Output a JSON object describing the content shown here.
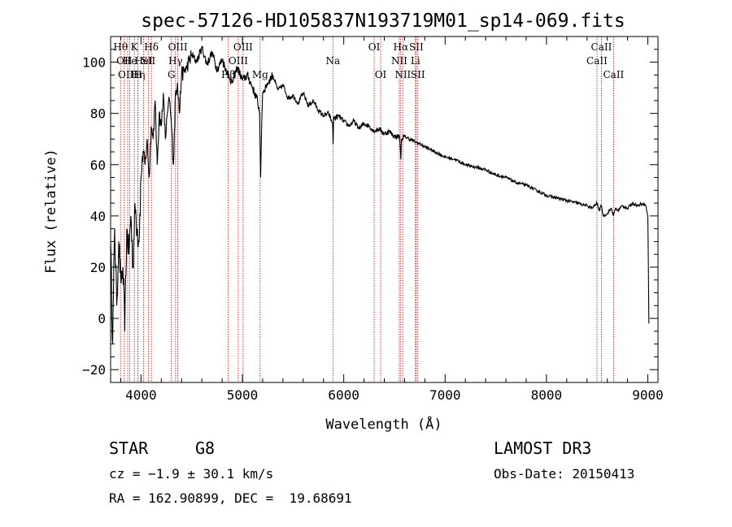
{
  "chart_data": {
    "type": "line",
    "title": "spec-57126-HD105837N193719M01_sp14-069.fits",
    "xlabel": "Wavelength (Å)",
    "ylabel": "Flux (relative)",
    "xlim": [
      3700,
      9100
    ],
    "ylim": [
      -25,
      110
    ],
    "xticks": [
      4000,
      5000,
      6000,
      7000,
      8000,
      9000
    ],
    "yticks": [
      -20,
      0,
      20,
      40,
      60,
      80,
      100
    ],
    "grid": false,
    "series": [
      {
        "x": [
          3700,
          3720,
          3740,
          3760,
          3780,
          3800,
          3820,
          3840,
          3860,
          3880,
          3900,
          3920,
          3940,
          3960,
          3980,
          4000,
          4020,
          4040,
          4060,
          4080,
          4100,
          4120,
          4140,
          4160,
          4180,
          4200,
          4220,
          4240,
          4260,
          4280,
          4300,
          4320,
          4340,
          4360,
          4380,
          4400,
          4450,
          4500,
          4550,
          4600,
          4650,
          4700,
          4750,
          4800,
          4850,
          4900,
          4950,
          5000,
          5050,
          5100,
          5150,
          5170,
          5180,
          5190,
          5200,
          5250,
          5300,
          5350,
          5400,
          5450,
          5500,
          5550,
          5600,
          5650,
          5700,
          5750,
          5800,
          5850,
          5890,
          5895,
          5900,
          5950,
          6000,
          6050,
          6100,
          6150,
          6200,
          6250,
          6300,
          6350,
          6400,
          6450,
          6500,
          6550,
          6563,
          6570,
          6600,
          6650,
          6700,
          6750,
          6800,
          6850,
          6900,
          6950,
          7000,
          7100,
          7200,
          7300,
          7400,
          7500,
          7600,
          7700,
          7800,
          7900,
          8000,
          8100,
          8200,
          8300,
          8400,
          8450,
          8498,
          8520,
          8542,
          8560,
          8600,
          8640,
          8662,
          8680,
          8700,
          8750,
          8800,
          8850,
          8900,
          8950,
          8980,
          9000,
          9010
        ],
        "y": [
          30,
          -10,
          35,
          5,
          30,
          15,
          20,
          -5,
          35,
          25,
          40,
          20,
          45,
          35,
          30,
          55,
          65,
          60,
          70,
          55,
          75,
          70,
          85,
          60,
          80,
          75,
          88,
          70,
          80,
          85,
          75,
          60,
          88,
          92,
          80,
          95,
          98,
          103,
          100,
          106,
          99,
          104,
          97,
          101,
          96,
          92,
          98,
          93,
          95,
          90,
          85,
          80,
          55,
          75,
          88,
          92,
          95,
          89,
          91,
          86,
          87,
          84,
          88,
          83,
          85,
          81,
          79,
          80,
          76,
          68,
          78,
          79,
          77,
          75,
          77,
          74,
          76,
          75,
          73,
          74,
          72,
          73,
          71,
          71,
          62,
          70,
          71,
          70,
          69,
          68,
          67,
          66,
          65,
          64,
          63,
          62,
          60,
          59,
          58,
          56,
          55,
          53,
          52,
          50,
          48,
          47,
          46,
          45,
          44,
          43,
          45,
          42,
          44,
          40,
          41,
          43,
          40,
          43,
          42,
          44,
          43,
          45,
          44,
          45,
          44,
          40,
          -2
        ]
      }
    ],
    "lines": [
      {
        "wl": 3798,
        "label": "Hθ",
        "row": 1
      },
      {
        "wl": 3835,
        "label": "OII",
        "row": 2
      },
      {
        "wl": 3869,
        "label": "OIII",
        "row": 3
      },
      {
        "wl": 3889,
        "label": "He",
        "row": 2
      },
      {
        "wl": 3934,
        "label": "K",
        "row": 1
      },
      {
        "wl": 3970,
        "label": "Hη",
        "row": 3
      },
      {
        "wl": 3970,
        "label": "H",
        "row": 3
      },
      {
        "wl": 4026,
        "label": "HeI",
        "row": 2
      },
      {
        "wl": 4072,
        "label": "SII",
        "row": 2
      },
      {
        "wl": 4102,
        "label": "Hδ",
        "row": 1
      },
      {
        "wl": 4300,
        "label": "G",
        "row": 3
      },
      {
        "wl": 4340,
        "label": "Hγ",
        "row": 2
      },
      {
        "wl": 4363,
        "label": "OIII",
        "row": 1
      },
      {
        "wl": 4861,
        "label": "Hβ",
        "row": 3
      },
      {
        "wl": 4959,
        "label": "OIII",
        "row": 2
      },
      {
        "wl": 5007,
        "label": "OIII",
        "row": 1
      },
      {
        "wl": 5175,
        "label": "Mg",
        "row": 3
      },
      {
        "wl": 5893,
        "label": "Na",
        "row": 2
      },
      {
        "wl": 6300,
        "label": "OI",
        "row": 1
      },
      {
        "wl": 6364,
        "label": "OI",
        "row": 3
      },
      {
        "wl": 6548,
        "label": "NII",
        "row": 2
      },
      {
        "wl": 6563,
        "label": "Hα",
        "row": 1
      },
      {
        "wl": 6583,
        "label": "NII",
        "row": 3
      },
      {
        "wl": 6707,
        "label": "Li",
        "row": 2
      },
      {
        "wl": 6716,
        "label": "SII",
        "row": 1
      },
      {
        "wl": 6731,
        "label": "SII",
        "row": 3
      },
      {
        "wl": 8498,
        "label": "CaII",
        "row": 2
      },
      {
        "wl": 8542,
        "label": "CaII",
        "row": 1
      },
      {
        "wl": 8662,
        "label": "CaII",
        "row": 3
      }
    ]
  },
  "info": {
    "class": "STAR",
    "subclass": "G8",
    "cz": "cz = −1.9 ± 30.1 km/s",
    "radec": "RA = 162.90899, DEC =  19.68691",
    "survey": "LAMOST DR3",
    "obsdate": "Obs-Date: 20150413"
  }
}
